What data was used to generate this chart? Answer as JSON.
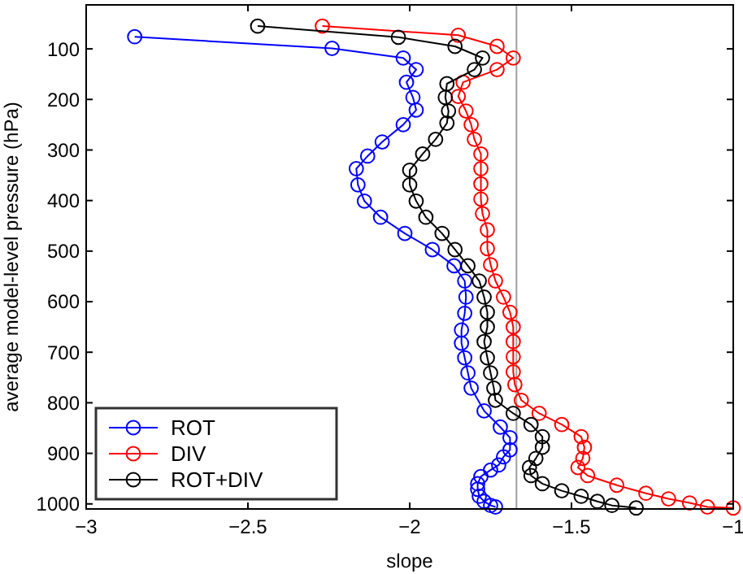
{
  "chart_data": {
    "type": "line",
    "xlabel": "slope",
    "ylabel": "average model-level pressure (hPa)",
    "xlim": [
      -3,
      -1
    ],
    "ylim": [
      1010,
      13
    ],
    "xticks": [
      {
        "value": -3,
        "label": "−3"
      },
      {
        "value": -2.5,
        "label": "−2.5"
      },
      {
        "value": -2,
        "label": "−2"
      },
      {
        "value": -1.5,
        "label": "−1.5"
      },
      {
        "value": -1,
        "label": "−1"
      }
    ],
    "yticks": [
      100,
      200,
      300,
      400,
      500,
      600,
      700,
      800,
      900,
      1000
    ],
    "grid": false,
    "legend": "bottom left",
    "marker": "circle",
    "line_style": "solid",
    "ref_lines": [
      {
        "axis": "x",
        "value": -1.67,
        "color": "#a0a0a0"
      }
    ],
    "series": [
      {
        "name": "ROT",
        "color": "#0000ff",
        "x": [
          -2.85,
          -2.24,
          -2.02,
          -1.98,
          -2.01,
          -1.99,
          -1.98,
          -2.02,
          -2.085,
          -2.13,
          -2.165,
          -2.16,
          -2.14,
          -2.09,
          -2.015,
          -1.93,
          -1.863,
          -1.83,
          -1.826,
          -1.83,
          -1.84,
          -1.84,
          -1.83,
          -1.82,
          -1.81,
          -1.77,
          -1.72,
          -1.69,
          -1.69,
          -1.71,
          -1.725,
          -1.75,
          -1.78,
          -1.79,
          -1.79,
          -1.785,
          -1.77,
          -1.75,
          -1.735
        ],
        "values": [
          76,
          99,
          118,
          141,
          166,
          196,
          221,
          250,
          284,
          312,
          337,
          369,
          401,
          433,
          465,
          497,
          529,
          559,
          591,
          623,
          656,
          682,
          711,
          741,
          771,
          816,
          848,
          869,
          893,
          907,
          923,
          933,
          946,
          960,
          971,
          985,
          995,
          1003,
          1006
        ]
      },
      {
        "name": "DIV",
        "color": "#ff0000",
        "x": [
          -2.27,
          -1.85,
          -1.73,
          -1.68,
          -1.73,
          -1.835,
          -1.85,
          -1.826,
          -1.81,
          -1.8,
          -1.78,
          -1.78,
          -1.78,
          -1.78,
          -1.775,
          -1.76,
          -1.76,
          -1.75,
          -1.735,
          -1.71,
          -1.69,
          -1.68,
          -1.68,
          -1.68,
          -1.68,
          -1.675,
          -1.655,
          -1.6,
          -1.53,
          -1.47,
          -1.46,
          -1.465,
          -1.48,
          -1.45,
          -1.36,
          -1.27,
          -1.2,
          -1.135,
          -1.08,
          -1
        ],
        "values": [
          55,
          73,
          95,
          118,
          141,
          166,
          194,
          223,
          250,
          279,
          308,
          337,
          367,
          397,
          426,
          458,
          495,
          527,
          559,
          591,
          621,
          650,
          679,
          709,
          739,
          764,
          795,
          821,
          843,
          867,
          888,
          910,
          928,
          944,
          963,
          979,
          990,
          998,
          1006,
          1008
        ]
      },
      {
        "name": "ROT+DIV",
        "color": "#000000",
        "x": [
          -2.47,
          -2.035,
          -1.86,
          -1.775,
          -1.8,
          -1.885,
          -1.89,
          -1.88,
          -1.885,
          -1.92,
          -1.96,
          -2,
          -2,
          -1.98,
          -1.95,
          -1.9,
          -1.86,
          -1.82,
          -1.785,
          -1.77,
          -1.76,
          -1.76,
          -1.77,
          -1.76,
          -1.75,
          -1.74,
          -1.735,
          -1.68,
          -1.625,
          -1.59,
          -1.59,
          -1.61,
          -1.63,
          -1.625,
          -1.59,
          -1.53,
          -1.47,
          -1.42,
          -1.375,
          -1.3
        ],
        "values": [
          55,
          77,
          95,
          118,
          141,
          169,
          196,
          223,
          247,
          279,
          308,
          340,
          369,
          401,
          433,
          465,
          497,
          529,
          559,
          591,
          621,
          650,
          679,
          711,
          741,
          771,
          795,
          821,
          843,
          867,
          888,
          910,
          928,
          944,
          960,
          974,
          985,
          995,
          1003,
          1008
        ]
      }
    ]
  }
}
